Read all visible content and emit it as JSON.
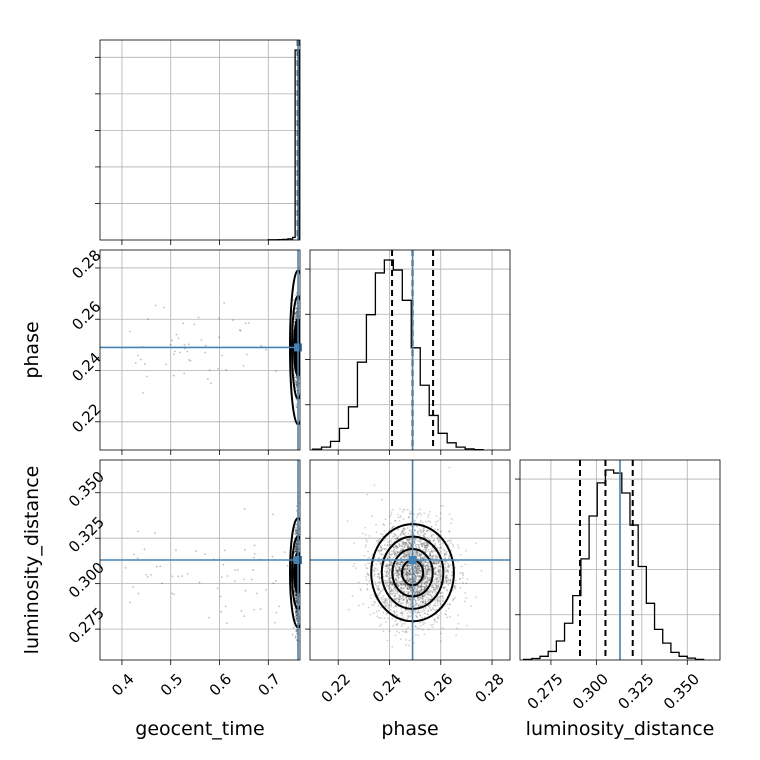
{
  "chart_data": {
    "type": "corner",
    "parameters": [
      "geocent_time",
      "phase",
      "luminosity_distance"
    ],
    "axis_labels": {
      "geocent_time": "geocent_time",
      "phase": "phase",
      "luminosity_distance": "luminosity_distance"
    },
    "ranges": {
      "geocent_time": [
        0.355,
        0.765
      ],
      "phase": [
        0.209,
        0.287
      ],
      "luminosity_distance": [
        0.258,
        0.368
      ]
    },
    "ticks": {
      "geocent_time": [
        0.4,
        0.5,
        0.6,
        0.7
      ],
      "phase": [
        0.22,
        0.24,
        0.26,
        0.28
      ],
      "luminosity_distance": [
        0.275,
        0.3,
        0.325,
        0.35
      ]
    },
    "tick_labels": {
      "geocent_time": [
        "0.4",
        "0.5",
        "0.6",
        "0.7"
      ],
      "phase": [
        "0.22",
        "0.24",
        "0.26",
        "0.28"
      ],
      "luminosity_distance": [
        "0.275",
        "0.300",
        "0.325",
        "0.350"
      ]
    },
    "truths": {
      "geocent_time": 0.761,
      "phase": 0.249,
      "luminosity_distance": 0.313
    },
    "truth_color": "#4682b4",
    "quantiles": {
      "geocent_time": [
        0.7603,
        0.761,
        0.7618
      ],
      "phase": [
        0.241,
        0.249,
        0.257
      ],
      "luminosity_distance": [
        0.291,
        0.305,
        0.32
      ]
    },
    "histograms": {
      "geocent_time": {
        "edges": [
          0.7,
          0.71,
          0.72,
          0.73,
          0.74,
          0.75,
          0.755,
          0.765
        ],
        "counts": [
          1,
          1,
          2,
          3,
          6,
          14,
          1000
        ]
      },
      "phase": {
        "edges": [
          0.21,
          0.2135,
          0.217,
          0.2205,
          0.224,
          0.2275,
          0.231,
          0.2345,
          0.238,
          0.2415,
          0.245,
          0.2485,
          0.252,
          0.2555,
          0.259,
          0.2625,
          0.266,
          0.2695,
          0.273,
          0.2765
        ],
        "counts": [
          3,
          10,
          30,
          75,
          150,
          305,
          470,
          615,
          660,
          625,
          520,
          355,
          225,
          120,
          58,
          25,
          10,
          4,
          1
        ]
      },
      "luminosity_distance": {
        "edges": [
          0.26,
          0.2645,
          0.269,
          0.2735,
          0.278,
          0.2825,
          0.287,
          0.2915,
          0.296,
          0.3005,
          0.305,
          0.3095,
          0.314,
          0.3185,
          0.323,
          0.3275,
          0.332,
          0.3365,
          0.341,
          0.3455,
          0.35,
          0.3545,
          0.359
        ],
        "counts": [
          2,
          5,
          12,
          28,
          62,
          120,
          210,
          330,
          470,
          578,
          620,
          610,
          545,
          440,
          305,
          185,
          100,
          55,
          25,
          12,
          6,
          2
        ]
      }
    },
    "grid": true
  }
}
